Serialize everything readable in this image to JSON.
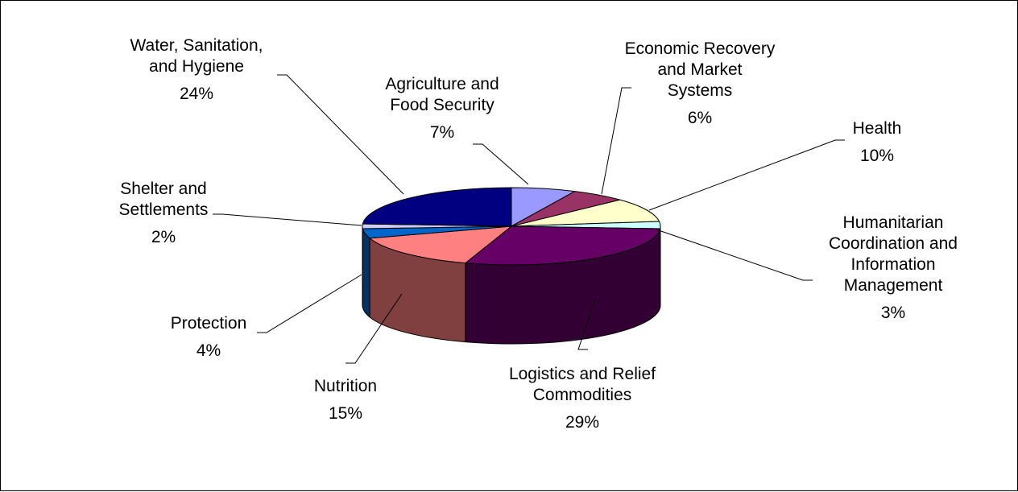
{
  "chart_data": {
    "type": "pie",
    "style": "3d-pie",
    "legend": "none",
    "slices": [
      {
        "label_lines": [
          "Agriculture and",
          "Food Security"
        ],
        "label": "Agriculture and Food Security",
        "value": 7,
        "percent_label": "7%",
        "color": "#9999ff"
      },
      {
        "label_lines": [
          "Economic Recovery",
          "and Market",
          "Systems"
        ],
        "label": "Economic Recovery and Market Systems",
        "value": 6,
        "percent_label": "6%",
        "color": "#993366"
      },
      {
        "label_lines": [
          "Health"
        ],
        "label": "Health",
        "value": 10,
        "percent_label": "10%",
        "color": "#ffffcc"
      },
      {
        "label_lines": [
          "Humanitarian",
          "Coordination and",
          "Information",
          "Management"
        ],
        "label": "Humanitarian Coordination and Information Management",
        "value": 3,
        "percent_label": "3%",
        "color": "#ccffff"
      },
      {
        "label_lines": [
          "Logistics and Relief",
          "Commodities"
        ],
        "label": "Logistics and Relief Commodities",
        "value": 29,
        "percent_label": "29%",
        "color": "#660066"
      },
      {
        "label_lines": [
          "Nutrition"
        ],
        "label": "Nutrition",
        "value": 15,
        "percent_label": "15%",
        "color": "#ff8080"
      },
      {
        "label_lines": [
          "Protection"
        ],
        "label": "Protection",
        "value": 4,
        "percent_label": "4%",
        "color": "#0066cc"
      },
      {
        "label_lines": [
          "Shelter and",
          "Settlements"
        ],
        "label": "Shelter and Settlements",
        "value": 2,
        "percent_label": "2%",
        "color": "#ccccff"
      },
      {
        "label_lines": [
          "Water, Sanitation,",
          "and Hygiene"
        ],
        "label": "Water, Sanitation, and Hygiene",
        "value": 24,
        "percent_label": "24%",
        "color": "#000080"
      }
    ]
  }
}
